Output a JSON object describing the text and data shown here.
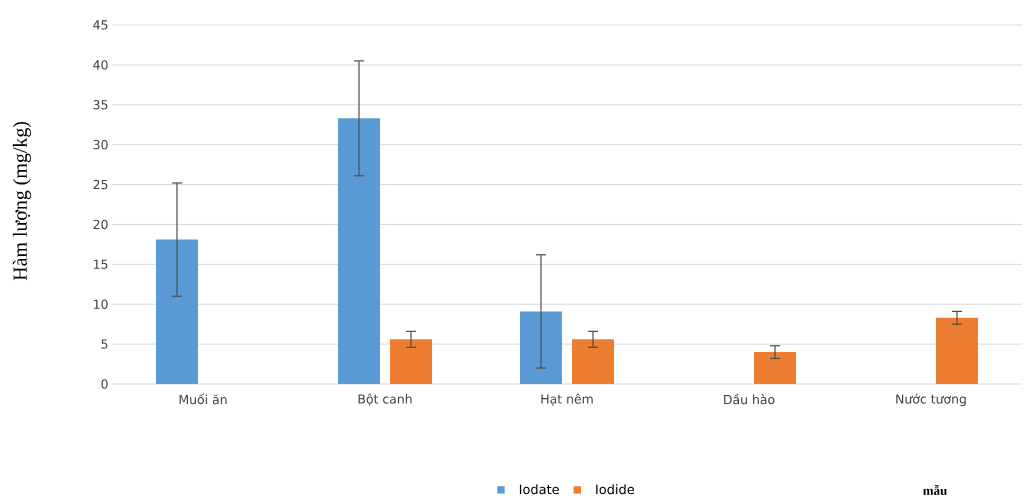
{
  "chart_data": {
    "type": "bar",
    "annotations": [
      "mẫu"
    ],
    "ylabel": "Hàm lượng (mg/kg)",
    "categories": [
      "Muối ăn",
      "Bột canh",
      "Hạt nêm",
      "Dầu hào",
      "Nước tương"
    ],
    "series": [
      {
        "name": "Iodate",
        "color": "#5b9bd5",
        "values": [
          18.1,
          33.3,
          9.1,
          null,
          null
        ],
        "errors": [
          7.1,
          7.2,
          7.1,
          null,
          null
        ]
      },
      {
        "name": "Iodide",
        "color": "#ed7d31",
        "values": [
          null,
          5.6,
          5.6,
          4.0,
          8.3
        ],
        "errors": [
          null,
          1.0,
          1.0,
          0.8,
          0.8
        ]
      }
    ],
    "ylim": [
      0,
      45
    ],
    "yticks": [
      0,
      5,
      10,
      15,
      20,
      25,
      30,
      35,
      40,
      45
    ],
    "grid": "y",
    "legend": "bottom"
  }
}
